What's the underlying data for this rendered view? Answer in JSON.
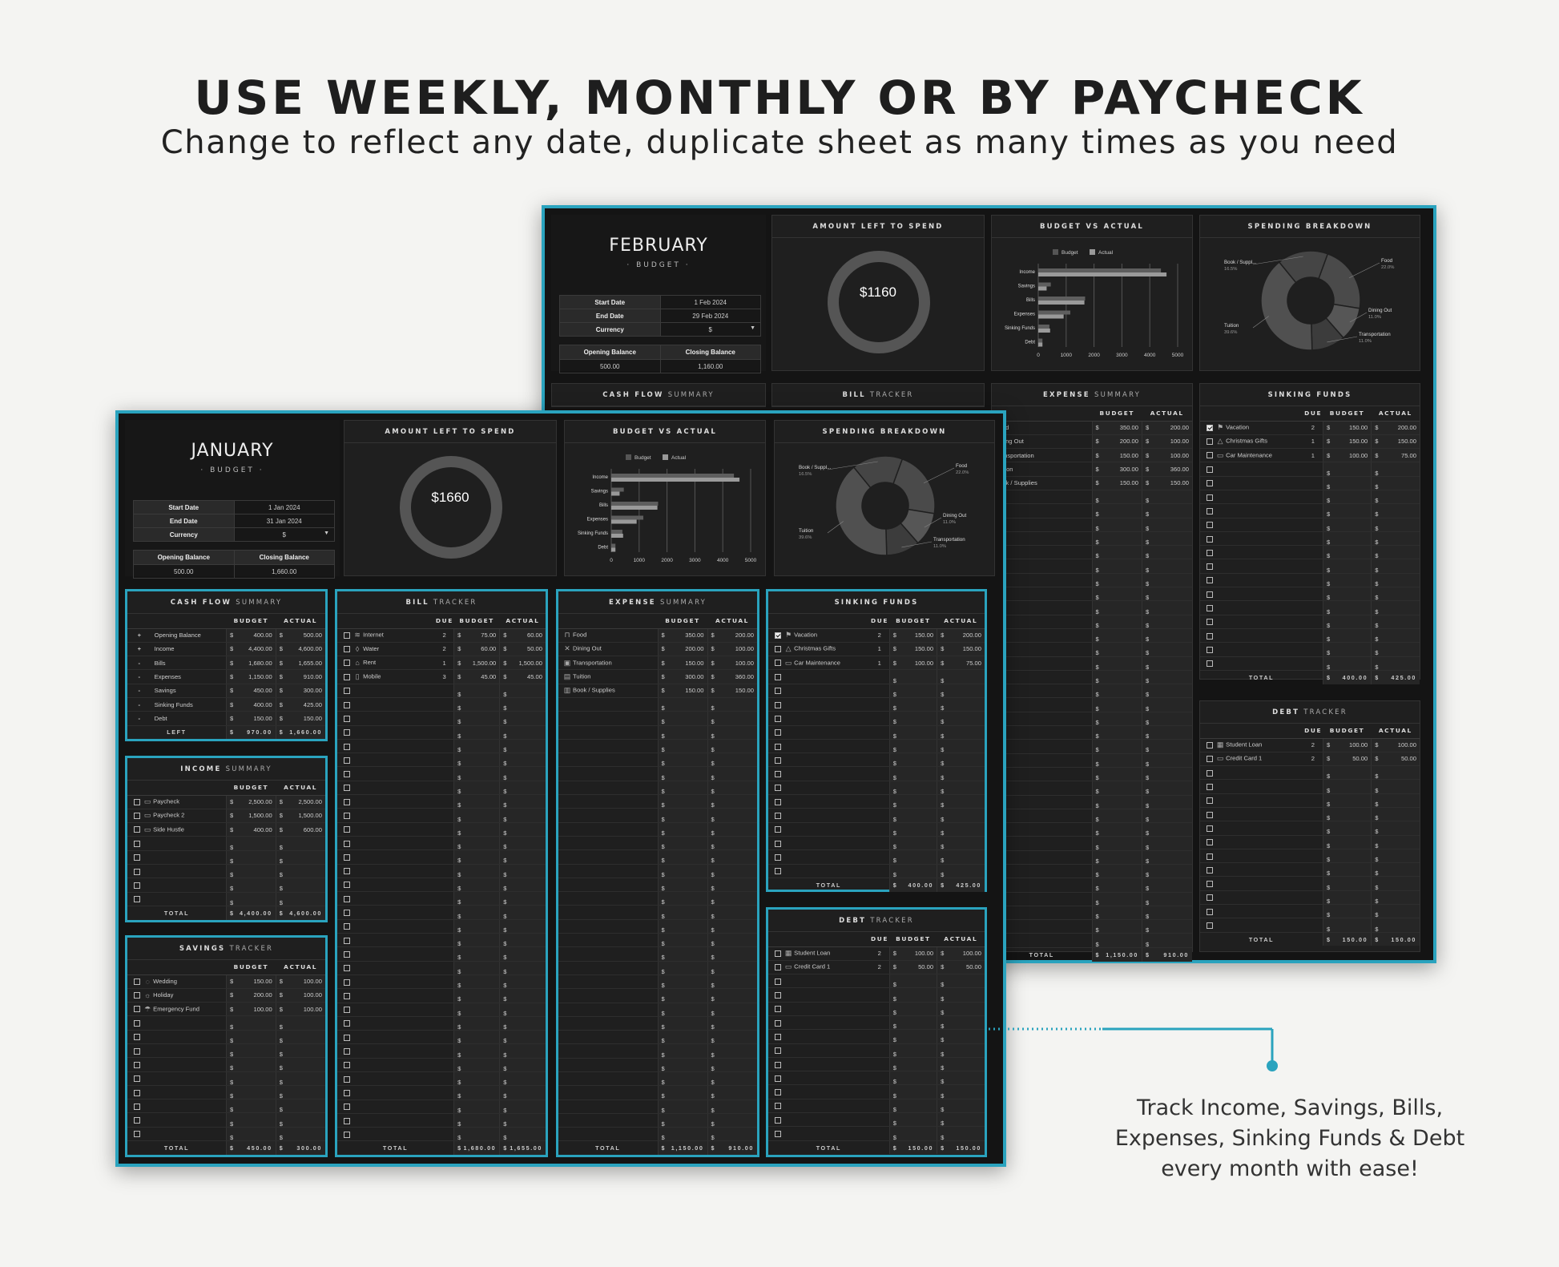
{
  "headline": "USE WEEKLY, MONTHLY OR BY PAYCHECK",
  "subline": "Change to reflect any date, duplicate sheet as many times as you need",
  "callout": "Track Income, Savings, Bills, Expenses, Sinking Funds & Debt every month with ease!",
  "colors": {
    "accent": "#2aa3be",
    "sheet_bg": "#141414",
    "panel_bg": "#1f1f1f"
  },
  "labels": {
    "budget_sub": "· BUDGET ·",
    "start_date": "Start Date",
    "end_date": "End Date",
    "currency": "Currency",
    "opening_balance": "Opening Balance",
    "closing_balance": "Closing Balance",
    "amount_left": "AMOUNT LEFT TO SPEND",
    "budget_vs_actual": "BUDGET VS ACTUAL",
    "spending_breakdown": "SPENDING BREAKDOWN",
    "cash_flow_a": "CASH FLOW",
    "cash_flow_b": "SUMMARY",
    "income_a": "INCOME",
    "income_b": "SUMMARY",
    "savings_a": "SAVINGS",
    "savings_b": "TRACKER",
    "bill_a": "BILL",
    "bill_b": "TRACKER",
    "expense_a": "EXPENSE",
    "expense_b": "SUMMARY",
    "sinking_a": "SINKING FUNDS",
    "debt_a": "DEBT",
    "debt_b": "TRACKER",
    "col_due": "DUE",
    "col_budget": "BUDGET",
    "col_actual": "ACTUAL",
    "total": "TOTAL",
    "left": "LEFT",
    "cur": "$",
    "legend_budget": "Budget",
    "legend_actual": "Actual"
  },
  "january": {
    "month": "JANUARY",
    "start": "1 Jan 2024",
    "end": "31 Jan 2024",
    "currency": "$",
    "opening": "500.00",
    "closing": "1,660.00",
    "left_to_spend": "$1660",
    "cash_flow": {
      "rows": [
        {
          "sign": "+",
          "name": "Opening Balance",
          "budget": "400.00",
          "actual": "500.00"
        },
        {
          "sign": "+",
          "name": "Income",
          "budget": "4,400.00",
          "actual": "4,600.00"
        },
        {
          "sign": "-",
          "name": "Bills",
          "budget": "1,680.00",
          "actual": "1,655.00"
        },
        {
          "sign": "-",
          "name": "Expenses",
          "budget": "1,150.00",
          "actual": "910.00"
        },
        {
          "sign": "-",
          "name": "Savings",
          "budget": "450.00",
          "actual": "300.00"
        },
        {
          "sign": "-",
          "name": "Sinking Funds",
          "budget": "400.00",
          "actual": "425.00"
        },
        {
          "sign": "-",
          "name": "Debt",
          "budget": "150.00",
          "actual": "150.00"
        }
      ],
      "left_budget": "970.00",
      "left_actual": "1,660.00"
    },
    "income": {
      "rows": [
        {
          "icon": "wallet-icon",
          "glyph": "▭",
          "name": "Paycheck",
          "budget": "2,500.00",
          "actual": "2,500.00"
        },
        {
          "icon": "wallet-icon",
          "glyph": "▭",
          "name": "Paycheck 2",
          "budget": "1,500.00",
          "actual": "1,500.00"
        },
        {
          "icon": "laptop-icon",
          "glyph": "▭",
          "name": "Side Hustle",
          "budget": "400.00",
          "actual": "600.00"
        }
      ],
      "total_budget": "4,400.00",
      "total_actual": "4,600.00"
    },
    "savings": {
      "rows": [
        {
          "icon": "rings-icon",
          "glyph": "◌",
          "name": "Wedding",
          "budget": "150.00",
          "actual": "100.00"
        },
        {
          "icon": "sun-icon",
          "glyph": "☼",
          "name": "Holiday",
          "budget": "200.00",
          "actual": "100.00"
        },
        {
          "icon": "umbrella-icon",
          "glyph": "☂",
          "name": "Emergency Fund",
          "budget": "100.00",
          "actual": "100.00"
        }
      ],
      "total_budget": "450.00",
      "total_actual": "300.00"
    },
    "bills": {
      "rows": [
        {
          "icon": "wifi-icon",
          "glyph": "≋",
          "name": "Internet",
          "due": "2",
          "budget": "75.00",
          "actual": "60.00"
        },
        {
          "icon": "water-drop-icon",
          "glyph": "◊",
          "name": "Water",
          "due": "2",
          "budget": "60.00",
          "actual": "50.00"
        },
        {
          "icon": "house-icon",
          "glyph": "⌂",
          "name": "Rent",
          "due": "1",
          "budget": "1,500.00",
          "actual": "1,500.00"
        },
        {
          "icon": "phone-icon",
          "glyph": "▯",
          "name": "Mobile",
          "due": "3",
          "budget": "45.00",
          "actual": "45.00"
        }
      ],
      "total_budget": "1,680.00",
      "total_actual": "1,655.00"
    },
    "expenses": {
      "rows": [
        {
          "icon": "cart-icon",
          "glyph": "⊓",
          "name": "Food",
          "budget": "350.00",
          "actual": "200.00"
        },
        {
          "icon": "utensils-icon",
          "glyph": "✕",
          "name": "Dining Out",
          "budget": "200.00",
          "actual": "100.00"
        },
        {
          "icon": "bus-icon",
          "glyph": "▣",
          "name": "Transportation",
          "budget": "150.00",
          "actual": "100.00"
        },
        {
          "icon": "book-icon",
          "glyph": "▤",
          "name": "Tuition",
          "budget": "300.00",
          "actual": "360.00"
        },
        {
          "icon": "books-icon",
          "glyph": "▥",
          "name": "Book / Supplies",
          "budget": "150.00",
          "actual": "150.00"
        }
      ],
      "total_budget": "1,150.00",
      "total_actual": "910.00"
    },
    "sinking": {
      "rows": [
        {
          "checked": true,
          "icon": "flag-icon",
          "glyph": "⚑",
          "name": "Vacation",
          "due": "2",
          "budget": "150.00",
          "actual": "200.00"
        },
        {
          "checked": false,
          "icon": "tree-icon",
          "glyph": "△",
          "name": "Christmas Gifts",
          "due": "1",
          "budget": "150.00",
          "actual": "150.00"
        },
        {
          "checked": false,
          "icon": "car-icon",
          "glyph": "▭",
          "name": "Car Maintenance",
          "due": "1",
          "budget": "100.00",
          "actual": "75.00"
        }
      ],
      "total_budget": "400.00",
      "total_actual": "425.00"
    },
    "debt": {
      "rows": [
        {
          "icon": "receipt-icon",
          "glyph": "▦",
          "name": "Student Loan",
          "due": "2",
          "budget": "100.00",
          "actual": "100.00"
        },
        {
          "icon": "credit-card-icon",
          "glyph": "▭",
          "name": "Credit Card 1",
          "due": "2",
          "budget": "50.00",
          "actual": "50.00"
        }
      ],
      "total_budget": "150.00",
      "total_actual": "150.00"
    }
  },
  "february": {
    "month": "FEBRUARY",
    "start": "1 Feb 2024",
    "end": "29 Feb 2024",
    "currency": "$",
    "opening": "500.00",
    "closing": "1,160.00",
    "left_to_spend": "$1160",
    "expenses": {
      "rows": [
        {
          "name": "Food",
          "budget": "350.00",
          "actual": "200.00"
        },
        {
          "name": "Dining Out",
          "budget": "200.00",
          "actual": "100.00"
        },
        {
          "name": "Transportation",
          "budget": "150.00",
          "actual": "100.00"
        },
        {
          "name": "Tuition",
          "budget": "300.00",
          "actual": "360.00"
        },
        {
          "name": "Book / Supplies",
          "budget": "150.00",
          "actual": "150.00"
        }
      ],
      "total_budget": "1,150.00",
      "total_actual": "910.00"
    },
    "sinking": {
      "rows": [
        {
          "checked": true,
          "icon": "flag-icon",
          "glyph": "⚑",
          "name": "Vacation",
          "due": "2",
          "budget": "150.00",
          "actual": "200.00"
        },
        {
          "checked": false,
          "icon": "tree-icon",
          "glyph": "△",
          "name": "Christmas Gifts",
          "due": "1",
          "budget": "150.00",
          "actual": "150.00"
        },
        {
          "checked": false,
          "icon": "car-icon",
          "glyph": "▭",
          "name": "Car Maintenance",
          "due": "1",
          "budget": "100.00",
          "actual": "75.00"
        }
      ],
      "total_budget": "400.00",
      "total_actual": "425.00"
    },
    "debt": {
      "rows": [
        {
          "icon": "receipt-icon",
          "glyph": "▦",
          "name": "Student Loan",
          "due": "2",
          "budget": "100.00",
          "actual": "100.00"
        },
        {
          "icon": "credit-card-icon",
          "glyph": "▭",
          "name": "Credit Card 1",
          "due": "2",
          "budget": "50.00",
          "actual": "50.00"
        }
      ],
      "total_budget": "150.00",
      "total_actual": "150.00"
    }
  },
  "chart_data": [
    {
      "type": "bar",
      "orientation": "horizontal",
      "title": "BUDGET VS ACTUAL",
      "categories": [
        "Income",
        "Savings",
        "Bills",
        "Expenses",
        "Sinking Funds",
        "Debt"
      ],
      "series": [
        {
          "name": "Budget",
          "values": [
            4400,
            450,
            1680,
            1150,
            400,
            150
          ]
        },
        {
          "name": "Actual",
          "values": [
            4600,
            300,
            1655,
            910,
            425,
            150
          ]
        }
      ],
      "xlim": [
        0,
        5000
      ],
      "xticks": [
        "0",
        "1000",
        "2000",
        "3000",
        "4000",
        "5000"
      ],
      "legend": "top"
    },
    {
      "type": "pie",
      "title": "SPENDING BREAKDOWN",
      "donut": true,
      "labels": [
        "Food",
        "Dining Out",
        "Transportation",
        "Tuition",
        "Book / Suppl..."
      ],
      "values": [
        22.0,
        11.0,
        11.0,
        39.6,
        16.5
      ],
      "display_labels": [
        "22.0%",
        "11.0%",
        "11.0%",
        "39.6%",
        "16.5%"
      ]
    }
  ]
}
